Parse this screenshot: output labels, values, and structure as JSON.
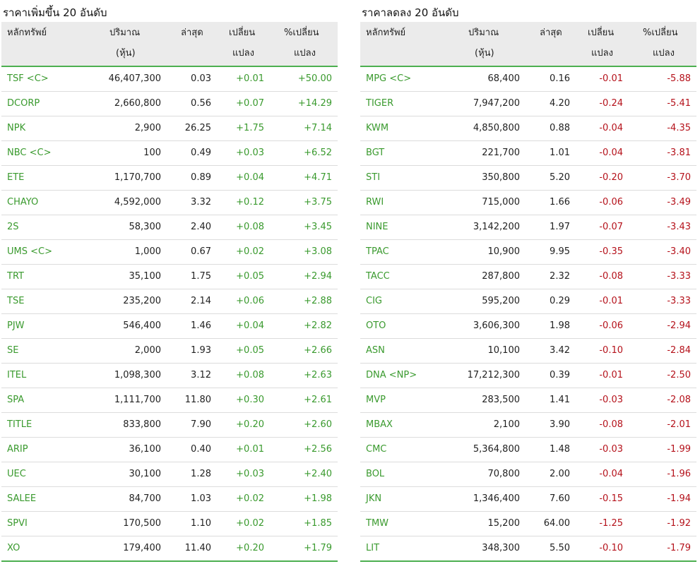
{
  "gainers": {
    "title": "ราคาเพิ่มขึ้น 20 อันดับ",
    "headers": {
      "symbol": "หลักทรัพย์",
      "volume_l1": "ปริมาณ",
      "volume_l2": "(หุ้น)",
      "last": "ล่าสุด",
      "change_l1": "เปลี่ยน",
      "change_l2": "แปลง",
      "pct_l1": "%เปลี่ยน",
      "pct_l2": "แปลง"
    },
    "rows": [
      {
        "symbol": "TSF <C>",
        "volume": "46,407,300",
        "last": "0.03",
        "change": "+0.01",
        "pct": "+50.00"
      },
      {
        "symbol": "DCORP",
        "volume": "2,660,800",
        "last": "0.56",
        "change": "+0.07",
        "pct": "+14.29"
      },
      {
        "symbol": "NPK",
        "volume": "2,900",
        "last": "26.25",
        "change": "+1.75",
        "pct": "+7.14"
      },
      {
        "symbol": "NBC <C>",
        "volume": "100",
        "last": "0.49",
        "change": "+0.03",
        "pct": "+6.52"
      },
      {
        "symbol": "ETE",
        "volume": "1,170,700",
        "last": "0.89",
        "change": "+0.04",
        "pct": "+4.71"
      },
      {
        "symbol": "CHAYO",
        "volume": "4,592,000",
        "last": "3.32",
        "change": "+0.12",
        "pct": "+3.75"
      },
      {
        "symbol": "2S",
        "volume": "58,300",
        "last": "2.40",
        "change": "+0.08",
        "pct": "+3.45"
      },
      {
        "symbol": "UMS <C>",
        "volume": "1,000",
        "last": "0.67",
        "change": "+0.02",
        "pct": "+3.08"
      },
      {
        "symbol": "TRT",
        "volume": "35,100",
        "last": "1.75",
        "change": "+0.05",
        "pct": "+2.94"
      },
      {
        "symbol": "TSE",
        "volume": "235,200",
        "last": "2.14",
        "change": "+0.06",
        "pct": "+2.88"
      },
      {
        "symbol": "PJW",
        "volume": "546,400",
        "last": "1.46",
        "change": "+0.04",
        "pct": "+2.82"
      },
      {
        "symbol": "SE",
        "volume": "2,000",
        "last": "1.93",
        "change": "+0.05",
        "pct": "+2.66"
      },
      {
        "symbol": "ITEL",
        "volume": "1,098,300",
        "last": "3.12",
        "change": "+0.08",
        "pct": "+2.63"
      },
      {
        "symbol": "SPA",
        "volume": "1,111,700",
        "last": "11.80",
        "change": "+0.30",
        "pct": "+2.61"
      },
      {
        "symbol": "TITLE",
        "volume": "833,800",
        "last": "7.90",
        "change": "+0.20",
        "pct": "+2.60"
      },
      {
        "symbol": "ARIP",
        "volume": "36,100",
        "last": "0.40",
        "change": "+0.01",
        "pct": "+2.56"
      },
      {
        "symbol": "UEC",
        "volume": "30,100",
        "last": "1.28",
        "change": "+0.03",
        "pct": "+2.40"
      },
      {
        "symbol": "SALEE",
        "volume": "84,700",
        "last": "1.03",
        "change": "+0.02",
        "pct": "+1.98"
      },
      {
        "symbol": "SPVI",
        "volume": "170,500",
        "last": "1.10",
        "change": "+0.02",
        "pct": "+1.85"
      },
      {
        "symbol": "XO",
        "volume": "179,400",
        "last": "11.40",
        "change": "+0.20",
        "pct": "+1.79"
      }
    ]
  },
  "losers": {
    "title": "ราคาลดลง 20 อันดับ",
    "headers": {
      "symbol": "หลักทรัพย์",
      "volume_l1": "ปริมาณ",
      "volume_l2": "(หุ้น)",
      "last": "ล่าสุด",
      "change_l1": "เปลี่ยน",
      "change_l2": "แปลง",
      "pct_l1": "%เปลี่ยน",
      "pct_l2": "แปลง"
    },
    "rows": [
      {
        "symbol": "MPG <C>",
        "volume": "68,400",
        "last": "0.16",
        "change": "-0.01",
        "pct": "-5.88"
      },
      {
        "symbol": "TIGER",
        "volume": "7,947,200",
        "last": "4.20",
        "change": "-0.24",
        "pct": "-5.41"
      },
      {
        "symbol": "KWM",
        "volume": "4,850,800",
        "last": "0.88",
        "change": "-0.04",
        "pct": "-4.35"
      },
      {
        "symbol": "BGT",
        "volume": "221,700",
        "last": "1.01",
        "change": "-0.04",
        "pct": "-3.81"
      },
      {
        "symbol": "STI",
        "volume": "350,800",
        "last": "5.20",
        "change": "-0.20",
        "pct": "-3.70"
      },
      {
        "symbol": "RWI",
        "volume": "715,000",
        "last": "1.66",
        "change": "-0.06",
        "pct": "-3.49"
      },
      {
        "symbol": "NINE",
        "volume": "3,142,200",
        "last": "1.97",
        "change": "-0.07",
        "pct": "-3.43"
      },
      {
        "symbol": "TPAC",
        "volume": "10,900",
        "last": "9.95",
        "change": "-0.35",
        "pct": "-3.40"
      },
      {
        "symbol": "TACC",
        "volume": "287,800",
        "last": "2.32",
        "change": "-0.08",
        "pct": "-3.33"
      },
      {
        "symbol": "CIG",
        "volume": "595,200",
        "last": "0.29",
        "change": "-0.01",
        "pct": "-3.33"
      },
      {
        "symbol": "OTO",
        "volume": "3,606,300",
        "last": "1.98",
        "change": "-0.06",
        "pct": "-2.94"
      },
      {
        "symbol": "ASN",
        "volume": "10,100",
        "last": "3.42",
        "change": "-0.10",
        "pct": "-2.84"
      },
      {
        "symbol": "DNA <NP>",
        "volume": "17,212,300",
        "last": "0.39",
        "change": "-0.01",
        "pct": "-2.50"
      },
      {
        "symbol": "MVP",
        "volume": "283,500",
        "last": "1.41",
        "change": "-0.03",
        "pct": "-2.08"
      },
      {
        "symbol": "MBAX",
        "volume": "2,100",
        "last": "3.90",
        "change": "-0.08",
        "pct": "-2.01"
      },
      {
        "symbol": "CMC",
        "volume": "5,364,800",
        "last": "1.48",
        "change": "-0.03",
        "pct": "-1.99"
      },
      {
        "symbol": "BOL",
        "volume": "70,800",
        "last": "2.00",
        "change": "-0.04",
        "pct": "-1.96"
      },
      {
        "symbol": "JKN",
        "volume": "1,346,400",
        "last": "7.60",
        "change": "-0.15",
        "pct": "-1.94"
      },
      {
        "symbol": "TMW",
        "volume": "15,200",
        "last": "64.00",
        "change": "-1.25",
        "pct": "-1.92"
      },
      {
        "symbol": "LIT",
        "volume": "348,300",
        "last": "5.50",
        "change": "-0.10",
        "pct": "-1.79"
      }
    ]
  },
  "colors": {
    "up": "#3a9a2e",
    "down": "#b5121b",
    "accent_line": "#4caf50",
    "header_bg": "#ebebeb"
  }
}
